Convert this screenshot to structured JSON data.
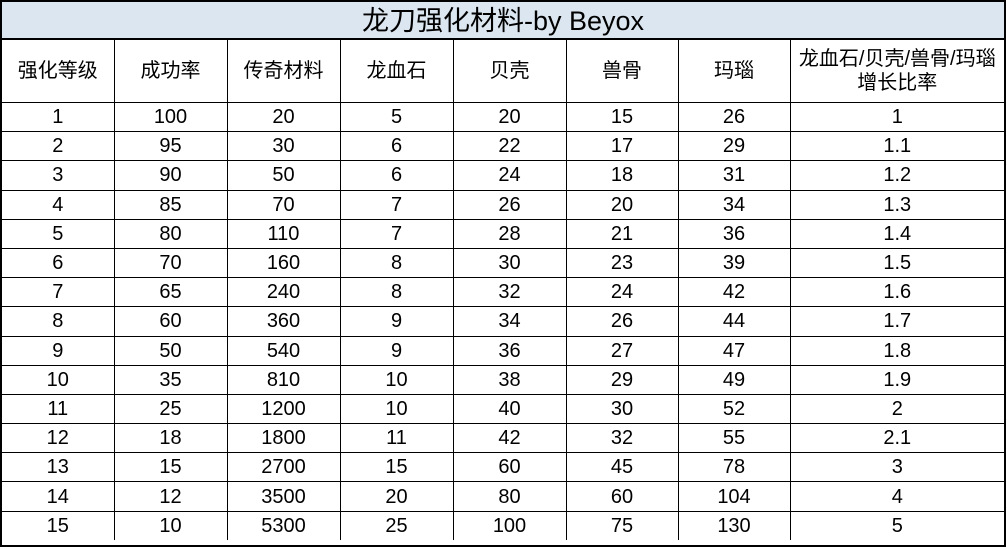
{
  "title": "龙刀强化材料-by Beyox",
  "colors": {
    "title_background": "#dce6f1",
    "grid": "#000000"
  },
  "columns": [
    "强化等级",
    "成功率",
    "传奇材料",
    "龙血石",
    "贝壳",
    "兽骨",
    "玛瑙",
    "龙血石/贝壳/兽骨/玛瑙增长比率"
  ],
  "rows": [
    [
      "1",
      "100",
      "20",
      "5",
      "20",
      "15",
      "26",
      "1"
    ],
    [
      "2",
      "95",
      "30",
      "6",
      "22",
      "17",
      "29",
      "1.1"
    ],
    [
      "3",
      "90",
      "50",
      "6",
      "24",
      "18",
      "31",
      "1.2"
    ],
    [
      "4",
      "85",
      "70",
      "7",
      "26",
      "20",
      "34",
      "1.3"
    ],
    [
      "5",
      "80",
      "110",
      "7",
      "28",
      "21",
      "36",
      "1.4"
    ],
    [
      "6",
      "70",
      "160",
      "8",
      "30",
      "23",
      "39",
      "1.5"
    ],
    [
      "7",
      "65",
      "240",
      "8",
      "32",
      "24",
      "42",
      "1.6"
    ],
    [
      "8",
      "60",
      "360",
      "9",
      "34",
      "26",
      "44",
      "1.7"
    ],
    [
      "9",
      "50",
      "540",
      "9",
      "36",
      "27",
      "47",
      "1.8"
    ],
    [
      "10",
      "35",
      "810",
      "10",
      "38",
      "29",
      "49",
      "1.9"
    ],
    [
      "11",
      "25",
      "1200",
      "10",
      "40",
      "30",
      "52",
      "2"
    ],
    [
      "12",
      "18",
      "1800",
      "11",
      "42",
      "32",
      "55",
      "2.1"
    ],
    [
      "13",
      "15",
      "2700",
      "15",
      "60",
      "45",
      "78",
      "3"
    ],
    [
      "14",
      "12",
      "3500",
      "20",
      "80",
      "60",
      "104",
      "4"
    ],
    [
      "15",
      "10",
      "5300",
      "25",
      "100",
      "75",
      "130",
      "5"
    ]
  ]
}
